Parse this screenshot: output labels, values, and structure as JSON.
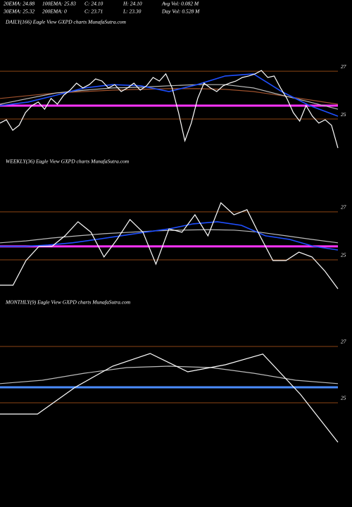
{
  "header": {
    "items": [
      "20EMA: 24.88",
      "100EMA: 25.83",
      "C: 24.10",
      "H: 24.10",
      "Avg Vol: 0.082  M",
      "30EMA: 25.32",
      "200EMA: 0",
      "C: 23.71",
      "L: 23.30",
      "Day Vol: 0.528  M"
    ]
  },
  "chart_data": [
    {
      "type": "line",
      "title": "DAILY(166) Eagle  View  GXPD charts MunafaSutra.com",
      "ylim": [
        23.5,
        28.8
      ],
      "yticks": [
        25,
        27
      ],
      "grid": true,
      "grid_color": "#8b4513",
      "levels": [
        {
          "value": 25.56,
          "color": "#ff33ff"
        }
      ],
      "series": [
        {
          "color": "#a0522d",
          "values": [
            25.86,
            25.98,
            26.09,
            26.15,
            26.21,
            26.24,
            26.27,
            26.27,
            26.24,
            26.15,
            25.98,
            25.8,
            25.62
          ]
        },
        {
          "color": "#bbbbbb",
          "values": [
            25.62,
            25.86,
            26.09,
            26.21,
            26.3,
            26.33,
            26.39,
            26.44,
            26.44,
            26.3,
            26.0,
            25.71,
            25.41
          ]
        },
        {
          "color": "#1f4fff",
          "values": [
            25.56,
            25.71,
            26.0,
            26.3,
            26.44,
            26.39,
            26.15,
            26.44,
            26.8,
            26.89,
            26.15,
            25.56,
            25.12
          ]
        },
        {
          "color": "#ffffff",
          "values": [
            24.83,
            24.97,
            24.53,
            24.74,
            25.27,
            25.56,
            25.71,
            25.41,
            25.86,
            25.62,
            26.0,
            26.21,
            26.5,
            26.3,
            26.44,
            26.68,
            26.59,
            26.3,
            26.44,
            26.15,
            26.3,
            26.5,
            26.21,
            26.39,
            26.74,
            26.59,
            26.89,
            26.3,
            25.27,
            24.09,
            24.83,
            25.86,
            26.5,
            26.3,
            26.15,
            26.39,
            26.5,
            26.59,
            26.74,
            26.8,
            26.89,
            27.03,
            26.74,
            26.8,
            26.3,
            25.86,
            25.27,
            24.91,
            25.56,
            25.12,
            24.83,
            24.97,
            24.74,
            23.79
          ]
        }
      ]
    },
    {
      "type": "line",
      "title": "WEEKLY(36) Eagle  View  GXPD charts MunafaSutra.com",
      "ylim": [
        23.5,
        28.79
      ],
      "yticks": [
        25,
        27
      ],
      "grid": true,
      "grid_color": "#8b4513",
      "levels": [
        {
          "value": 25.56,
          "color": "#ff33ff"
        }
      ],
      "series": [
        {
          "color": "#bbbbbb",
          "values": [
            25.71,
            25.79,
            25.91,
            26.0,
            26.09,
            26.15,
            26.21,
            26.24,
            26.26,
            26.24,
            26.15,
            26.0,
            25.85,
            25.71
          ]
        },
        {
          "color": "#1f4fff",
          "values": [
            25.56,
            25.56,
            25.62,
            25.71,
            25.85,
            26.0,
            26.15,
            26.29,
            26.5,
            26.59,
            26.44,
            26.0,
            25.85,
            25.56,
            25.41
          ]
        },
        {
          "color": "#ffffff",
          "values": [
            23.94,
            23.94,
            24.97,
            25.56,
            25.56,
            26.0,
            26.59,
            26.15,
            25.12,
            25.85,
            26.68,
            26.15,
            24.82,
            26.29,
            26.15,
            26.88,
            26.0,
            27.38,
            26.88,
            27.09,
            26.0,
            24.97,
            24.97,
            25.32,
            25.12,
            24.53,
            23.79
          ]
        }
      ]
    },
    {
      "type": "line",
      "title": "MONTHLY(9) Eagle  View  GXPD charts MunafaSutra.com",
      "ylim": [
        23.3,
        28.05
      ],
      "yticks": [
        25,
        27
      ],
      "grid": true,
      "grid_color": "#8b4513",
      "levels": [
        {
          "value": 25.55,
          "color": "#4a8cff"
        }
      ],
      "series": [
        {
          "color": "#bbbbbb",
          "values": [
            25.68,
            25.8,
            26.05,
            26.25,
            26.3,
            26.25,
            26.05,
            25.8,
            25.68
          ]
        },
        {
          "color": "#ffffff",
          "values": [
            24.6,
            24.6,
            25.55,
            26.3,
            26.75,
            26.1,
            26.35,
            26.73,
            25.3,
            23.6
          ]
        }
      ]
    }
  ]
}
